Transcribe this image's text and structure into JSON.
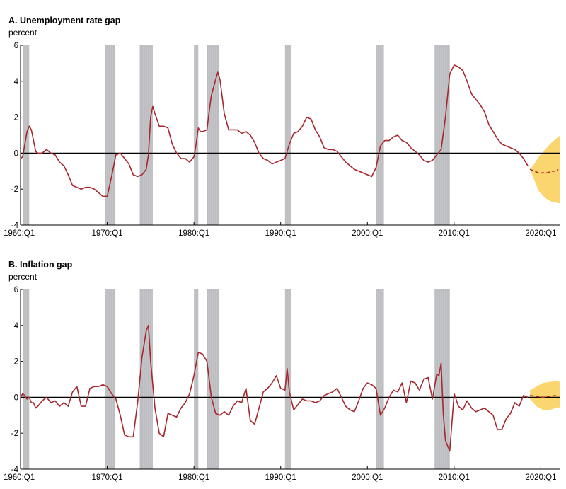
{
  "chart_data": [
    {
      "type": "line",
      "title": "A. Unemployment rate gap",
      "ylabel": "percent",
      "ylim": [
        -4,
        6
      ],
      "yticks": [
        -4,
        -2,
        0,
        2,
        4,
        6
      ],
      "xlim": [
        1960.0,
        2022.25
      ],
      "xticks": [
        "1960:Q1",
        "1970:Q1",
        "1980:Q1",
        "1990:Q1",
        "2000:Q1",
        "2010:Q1",
        "2020:Q1"
      ],
      "xtick_values": [
        1960,
        1970,
        1980,
        1990,
        2000,
        2010,
        2020
      ],
      "recession_bands": [
        [
          1960.25,
          1961.0
        ],
        [
          1969.75,
          1970.9
        ],
        [
          1973.75,
          1975.25
        ],
        [
          1980.0,
          1980.5
        ],
        [
          1981.5,
          1982.9
        ],
        [
          1990.5,
          1991.25
        ],
        [
          2001.0,
          2001.9
        ],
        [
          2007.75,
          2009.5
        ]
      ],
      "series": [
        {
          "style": "solid",
          "color": "#a7272e",
          "x": [
            1960.0,
            1960.25,
            1960.5,
            1960.75,
            1961.0,
            1961.25,
            1961.5,
            1961.75,
            1962.0,
            1962.5,
            1963.0,
            1963.25,
            1963.5,
            1964.0,
            1964.5,
            1965.0,
            1965.5,
            1966.0,
            1966.5,
            1967.0,
            1967.5,
            1968.0,
            1968.5,
            1969.0,
            1969.5,
            1970.0,
            1970.5,
            1971.0,
            1971.5,
            1972.0,
            1972.5,
            1973.0,
            1973.5,
            1974.0,
            1974.5,
            1974.75,
            1975.0,
            1975.25,
            1975.5,
            1976.0,
            1976.5,
            1977.0,
            1977.5,
            1978.0,
            1978.5,
            1979.0,
            1979.5,
            1980.0,
            1980.25,
            1980.5,
            1980.75,
            1981.0,
            1981.5,
            1981.75,
            1982.0,
            1982.5,
            1982.75,
            1983.0,
            1983.5,
            1984.0,
            1984.5,
            1985.0,
            1985.5,
            1986.0,
            1986.5,
            1987.0,
            1987.5,
            1988.0,
            1988.5,
            1989.0,
            1989.5,
            1990.0,
            1990.5,
            1991.0,
            1991.5,
            1992.0,
            1992.5,
            1993.0,
            1993.5,
            1994.0,
            1994.5,
            1995.0,
            1995.5,
            1996.0,
            1996.5,
            1997.0,
            1997.5,
            1998.0,
            1998.5,
            1999.0,
            1999.5,
            2000.0,
            2000.5,
            2001.0,
            2001.5,
            2002.0,
            2002.5,
            2003.0,
            2003.5,
            2004.0,
            2004.5,
            2005.0,
            2005.5,
            2006.0,
            2006.5,
            2007.0,
            2007.5,
            2008.0,
            2008.5,
            2009.0,
            2009.5,
            2010.0,
            2010.5,
            2011.0,
            2011.5,
            2012.0,
            2012.5,
            2013.0,
            2013.5,
            2014.0,
            2014.5,
            2015.0,
            2015.5,
            2016.0,
            2016.5,
            2017.0,
            2017.5,
            2018.0,
            2018.5
          ],
          "y": [
            -0.3,
            -0.2,
            0.5,
            1.2,
            1.5,
            1.3,
            0.7,
            0.1,
            0.0,
            0.0,
            0.2,
            0.1,
            0.0,
            -0.1,
            -0.5,
            -0.7,
            -1.2,
            -1.8,
            -1.9,
            -2.0,
            -1.9,
            -1.9,
            -2.0,
            -2.2,
            -2.4,
            -2.4,
            -1.3,
            -0.1,
            0.0,
            -0.3,
            -0.6,
            -1.2,
            -1.3,
            -1.2,
            -0.9,
            -0.1,
            2.0,
            2.6,
            2.2,
            1.5,
            1.5,
            1.4,
            0.5,
            0.0,
            -0.3,
            -0.3,
            -0.5,
            -0.2,
            0.5,
            1.4,
            1.2,
            1.2,
            1.3,
            2.3,
            3.2,
            4.1,
            4.5,
            4.1,
            2.2,
            1.3,
            1.3,
            1.3,
            1.1,
            1.2,
            1.0,
            0.6,
            0.0,
            -0.3,
            -0.4,
            -0.6,
            -0.5,
            -0.4,
            -0.3,
            0.5,
            1.1,
            1.2,
            1.5,
            2.0,
            1.9,
            1.3,
            0.9,
            0.3,
            0.2,
            0.2,
            0.1,
            -0.2,
            -0.5,
            -0.7,
            -0.9,
            -1.0,
            -1.1,
            -1.2,
            -1.3,
            -0.8,
            0.4,
            0.7,
            0.7,
            0.9,
            1.0,
            0.7,
            0.6,
            0.3,
            0.1,
            -0.1,
            -0.4,
            -0.5,
            -0.4,
            -0.1,
            0.2,
            2.0,
            4.4,
            4.9,
            4.8,
            4.6,
            4.0,
            3.3,
            3.0,
            2.7,
            2.3,
            1.6,
            1.2,
            0.8,
            0.5,
            0.4,
            0.3,
            0.2,
            0.0,
            -0.3,
            -0.7
          ]
        },
        {
          "style": "dashed",
          "color": "#a7272e",
          "x": [
            2018.75,
            2019.25,
            2019.75,
            2020.25,
            2020.75,
            2021.25,
            2021.75,
            2022.0
          ],
          "y": [
            -0.9,
            -1.0,
            -1.1,
            -1.1,
            -1.1,
            -1.0,
            -1.0,
            -0.9
          ]
        }
      ],
      "band": {
        "color": "#fbd56e",
        "x": [
          2018.75,
          2019.25,
          2019.75,
          2020.5,
          2021.25,
          2022.25
        ],
        "upper": [
          -0.9,
          -0.6,
          -0.2,
          0.2,
          0.6,
          1.0
        ],
        "lower": [
          -0.9,
          -1.5,
          -2.1,
          -2.5,
          -2.7,
          -2.8
        ]
      }
    },
    {
      "type": "line",
      "title": "B. Inflation gap",
      "ylabel": "percent",
      "ylim": [
        -4,
        6
      ],
      "yticks": [
        -4,
        -2,
        0,
        2,
        4,
        6
      ],
      "xlim": [
        1960.0,
        2022.25
      ],
      "xticks": [
        "1960:Q1",
        "1970:Q1",
        "1980:Q1",
        "1990:Q1",
        "2000:Q1",
        "2010:Q1",
        "2020:Q1"
      ],
      "xtick_values": [
        1960,
        1970,
        1980,
        1990,
        2000,
        2010,
        2020
      ],
      "recession_bands": [
        [
          1960.25,
          1961.0
        ],
        [
          1969.75,
          1970.9
        ],
        [
          1973.75,
          1975.25
        ],
        [
          1980.0,
          1980.5
        ],
        [
          1981.5,
          1982.9
        ],
        [
          1990.5,
          1991.25
        ],
        [
          2001.0,
          2001.9
        ],
        [
          2007.75,
          2009.5
        ]
      ],
      "series": [
        {
          "style": "solid",
          "color": "#a7272e",
          "x": [
            1960.0,
            1960.25,
            1960.5,
            1960.75,
            1961.0,
            1961.25,
            1961.5,
            1961.75,
            1962.0,
            1962.5,
            1963.0,
            1963.5,
            1964.0,
            1964.5,
            1965.0,
            1965.5,
            1966.0,
            1966.5,
            1967.0,
            1967.5,
            1968.0,
            1968.5,
            1969.0,
            1969.5,
            1970.0,
            1970.5,
            1971.0,
            1971.5,
            1972.0,
            1972.5,
            1973.0,
            1973.5,
            1974.0,
            1974.5,
            1974.75,
            1975.0,
            1975.5,
            1976.0,
            1976.5,
            1977.0,
            1977.5,
            1978.0,
            1978.5,
            1979.0,
            1979.5,
            1980.0,
            1980.5,
            1981.0,
            1981.5,
            1982.0,
            1982.5,
            1983.0,
            1983.5,
            1984.0,
            1984.5,
            1985.0,
            1985.5,
            1986.0,
            1986.5,
            1987.0,
            1987.5,
            1988.0,
            1988.5,
            1989.0,
            1989.5,
            1990.0,
            1990.5,
            1990.75,
            1991.0,
            1991.5,
            1992.0,
            1992.5,
            1993.0,
            1993.5,
            1994.0,
            1994.5,
            1995.0,
            1995.5,
            1996.0,
            1996.5,
            1997.0,
            1997.5,
            1998.0,
            1998.5,
            1999.0,
            1999.5,
            2000.0,
            2000.5,
            2001.0,
            2001.5,
            2002.0,
            2002.5,
            2003.0,
            2003.5,
            2004.0,
            2004.5,
            2005.0,
            2005.5,
            2006.0,
            2006.5,
            2007.0,
            2007.5,
            2008.0,
            2008.25,
            2008.5,
            2008.75,
            2009.0,
            2009.5,
            2010.0,
            2010.5,
            2011.0,
            2011.5,
            2012.0,
            2012.5,
            2013.0,
            2013.5,
            2014.0,
            2014.5,
            2015.0,
            2015.5,
            2016.0,
            2016.5,
            2017.0,
            2017.5,
            2018.0,
            2018.5
          ],
          "y": [
            0.0,
            0.2,
            0.1,
            -0.1,
            0.0,
            -0.3,
            -0.3,
            -0.6,
            -0.5,
            -0.2,
            0.0,
            -0.3,
            -0.2,
            -0.5,
            -0.3,
            -0.5,
            0.3,
            0.6,
            -0.5,
            -0.5,
            0.5,
            0.6,
            0.6,
            0.7,
            0.6,
            0.2,
            -0.1,
            -1.0,
            -2.1,
            -2.2,
            -2.2,
            -0.3,
            2.2,
            3.7,
            4.0,
            2.0,
            -0.6,
            -2.0,
            -2.2,
            -0.9,
            -1.0,
            -1.1,
            -0.6,
            -0.3,
            0.2,
            1.2,
            2.5,
            2.4,
            2.0,
            0.0,
            -0.9,
            -1.0,
            -0.8,
            -1.0,
            -0.5,
            -0.2,
            -0.3,
            0.5,
            -1.3,
            -1.5,
            -0.6,
            0.3,
            0.5,
            0.8,
            1.2,
            0.5,
            0.4,
            1.6,
            0.3,
            -0.7,
            -0.4,
            -0.1,
            -0.2,
            -0.2,
            -0.3,
            -0.2,
            0.1,
            0.2,
            0.3,
            0.5,
            0.0,
            -0.5,
            -0.7,
            -0.8,
            -0.2,
            0.5,
            0.8,
            0.7,
            0.5,
            -1.0,
            -0.6,
            0.0,
            0.4,
            0.3,
            0.8,
            -0.3,
            0.9,
            0.8,
            0.4,
            1.0,
            1.1,
            -0.1,
            1.3,
            1.2,
            1.9,
            -0.9,
            -2.4,
            -3.0,
            0.2,
            -0.5,
            -0.7,
            -0.2,
            -0.6,
            -0.8,
            -0.7,
            -0.6,
            -0.8,
            -1.0,
            -1.8,
            -1.8,
            -1.2,
            -0.9,
            -0.3,
            -0.5,
            0.1,
            0.0
          ]
        },
        {
          "style": "dashed",
          "color": "#a7272e",
          "x": [
            2018.75,
            2019.5,
            2020.25,
            2021.0,
            2021.75,
            2022.0
          ],
          "y": [
            0.1,
            0.05,
            0.0,
            0.05,
            0.1,
            0.1
          ]
        }
      ],
      "band": {
        "color": "#fbd56e",
        "x": [
          2018.75,
          2019.5,
          2020.25,
          2021.0,
          2021.75,
          2022.25
        ],
        "upper": [
          0.4,
          0.6,
          0.8,
          0.85,
          0.9,
          0.85
        ],
        "lower": [
          -0.1,
          -0.5,
          -0.7,
          -0.7,
          -0.6,
          -0.55
        ]
      }
    }
  ]
}
